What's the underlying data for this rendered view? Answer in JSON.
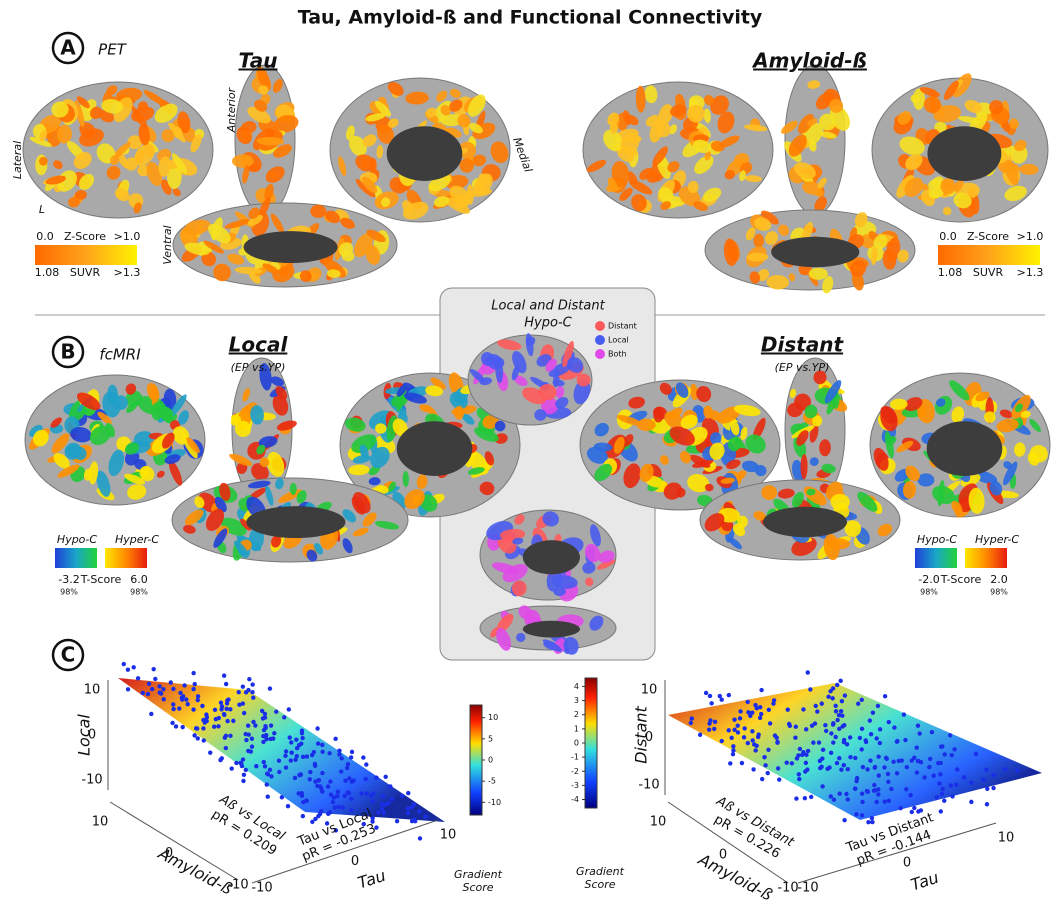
{
  "title": "Tau, Amyloid-ß and Functional Connectivity",
  "panel_a": {
    "label": "A",
    "modality": "PET",
    "tau_heading": "Tau",
    "amyloid_heading": "Amyloid-ß",
    "views": {
      "lateral": "Lateral",
      "anterior": "Anterior",
      "medial": "Medial",
      "hemisphere": "L",
      "ventral": "Ventral"
    },
    "legend": {
      "z_min": "0.0",
      "z_label": "Z-Score",
      "z_max": ">1.0",
      "suvr_min": "1.08",
      "suvr_label": "SUVR",
      "suvr_max": ">1.3"
    }
  },
  "inset": {
    "title_line1": "Local and Distant",
    "title_line2": "Hypo-C",
    "legend": [
      "Distant",
      "Local",
      "Both"
    ]
  },
  "panel_b": {
    "label": "B",
    "modality": "fcMRI",
    "local": {
      "heading": "Local",
      "subheading": "(EP vs.YP)",
      "legend": {
        "hypo": "Hypo-C",
        "hyper": "Hyper-C",
        "min": "-3.2",
        "min_pct": "98%",
        "label": "T-Score",
        "max": "6.0",
        "max_pct": "98%"
      }
    },
    "distant": {
      "heading": "Distant",
      "subheading": "(EP vs.YP)",
      "legend": {
        "hypo": "Hypo-C",
        "hyper": "Hyper-C",
        "min": "-2.0",
        "min_pct": "98%",
        "label": "T-Score",
        "max": "2.0",
        "max_pct": "98%"
      }
    }
  },
  "panel_c": {
    "label": "C",
    "plots": [
      {
        "z_label": "Local",
        "z_ticks": [
          10,
          0,
          -10
        ],
        "x_label": "Amyloid-ß",
        "x_ticks": [
          10,
          0,
          -10
        ],
        "y_label": "Tau",
        "y_ticks": [
          -10,
          0,
          10
        ],
        "annotation_1": [
          "Aß vs Local",
          "pR = 0.209"
        ],
        "annotation_2": [
          "Tau vs Local",
          "pR = -0.253"
        ],
        "colorbar_lim": [
          -13,
          13
        ],
        "colorbar_ticks": [
          10,
          5,
          0,
          -5,
          -10
        ],
        "colorbar_label": [
          "Gradient",
          "Score"
        ]
      },
      {
        "z_label": "Distant",
        "z_ticks": [
          10,
          0,
          -10
        ],
        "x_label": "Amyloid-ß",
        "x_ticks": [
          10,
          0,
          -10
        ],
        "y_label": "Tau",
        "y_ticks": [
          -10,
          0,
          10
        ],
        "annotation_1": [
          "Aß vs Distant",
          "pR = 0.226"
        ],
        "annotation_2": [
          "Tau vs Distant",
          "pR = -0.144"
        ],
        "colorbar_lim": [
          -4.6,
          4.6
        ],
        "colorbar_ticks": [
          4,
          3,
          2,
          1,
          0,
          -1,
          -2,
          -3,
          -4
        ],
        "colorbar_label": [
          "Gradient",
          "Score"
        ]
      }
    ]
  }
}
